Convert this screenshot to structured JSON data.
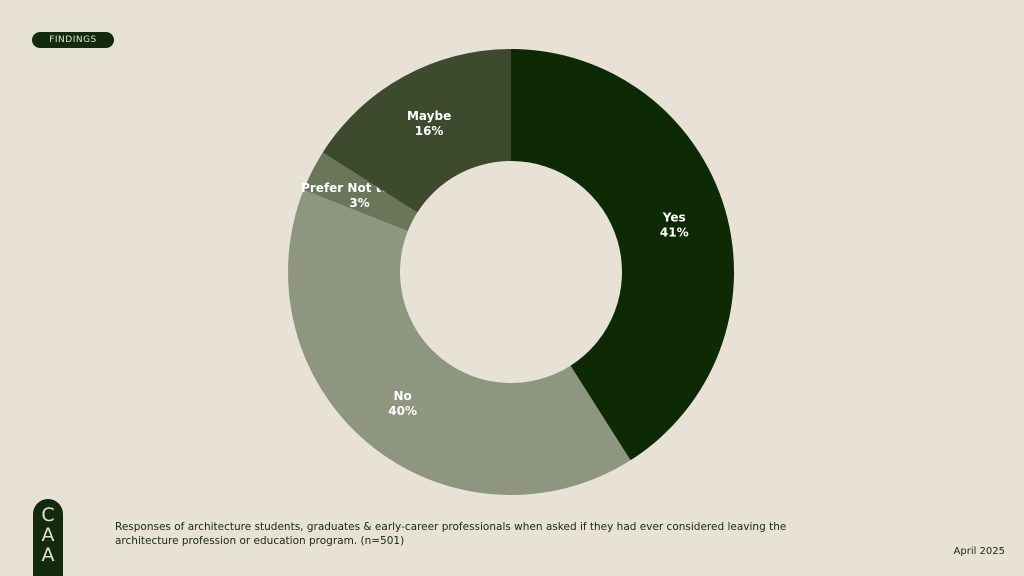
{
  "badge": "FINDINGS",
  "logo_letters": [
    "C",
    "A",
    "A"
  ],
  "caption": "Responses of architecture students, graduates & early-career professionals when asked if they had ever considered leaving the architecture profession or education program.  (n=501)",
  "date": "April 2025",
  "colors": {
    "background": "#e8e2d6",
    "accent": "#132a0c"
  },
  "chart_data": {
    "type": "pie",
    "donut": true,
    "slices": [
      {
        "label": "Yes",
        "value": 41,
        "value_text": "41%",
        "color": "#0d2a05"
      },
      {
        "label": "No",
        "value": 40,
        "value_text": "40%",
        "color": "#8f9680"
      },
      {
        "label": "Prefer Not to Say",
        "value": 3,
        "value_text": "3%",
        "color": "#6b7559"
      },
      {
        "label": "Maybe",
        "value": 16,
        "value_text": "16%",
        "color": "#3d4a2e"
      }
    ]
  }
}
